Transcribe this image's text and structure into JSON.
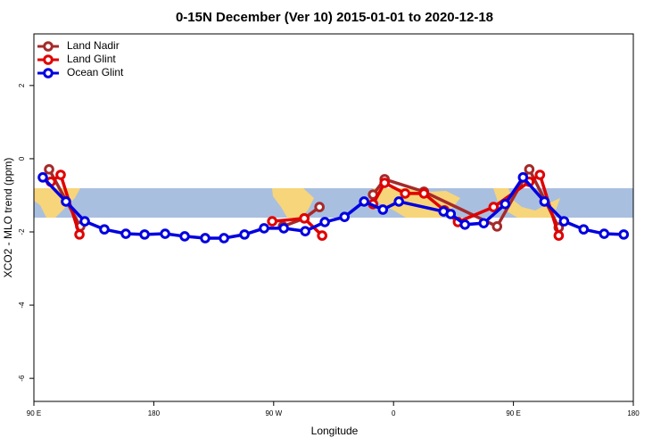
{
  "chart_data": {
    "type": "line",
    "title": "0-15N December (Ver 10)   2015-01-01 to 2020-12-18",
    "x_label": "Longitude",
    "y_label": "XCO2 - MLO trend (ppm)",
    "xlim": [
      90,
      540
    ],
    "xticks": [
      {
        "value": 90,
        "label": "90 E"
      },
      180,
      {
        "value": 270,
        "label": "90 W"
      },
      {
        "value": 360,
        "label": "0"
      },
      {
        "value": 450,
        "label": "90 E"
      },
      {
        "value": 540,
        "label": "180"
      }
    ],
    "ylim": [
      -6.63,
      3.41
    ],
    "yticks": [
      2,
      0,
      -2,
      -4,
      -6
    ],
    "legend": "upper left",
    "series": [
      {
        "name": "Land Nadir",
        "color": "#a52a2a",
        "x": [
          101.4,
          124.8,
          null,
          276.9,
          293,
          304.4,
          null,
          344.6,
          353.3,
          382.8,
          437.7,
          461.9,
          484
        ],
        "values": [
          -0.29,
          -1.85,
          null,
          -1.85,
          -1.63,
          -1.32,
          null,
          -0.98,
          -0.56,
          -0.9,
          -1.85,
          -0.29,
          -1.88
        ]
      },
      {
        "name": "Land Glint",
        "color": "#e00000",
        "x": [
          102.7,
          110.1,
          124.2,
          null,
          268.9,
          293,
          306.4,
          null,
          344.6,
          353.3,
          368.7,
          382.8,
          398.2,
          408.3,
          435.1,
          461.9,
          469.9,
          484
        ],
        "values": [
          -0.63,
          -0.44,
          -2.07,
          null,
          -1.71,
          -1.63,
          -2.1,
          null,
          -1.24,
          -0.66,
          -0.95,
          -0.95,
          -1.41,
          -1.73,
          -1.32,
          -0.63,
          -0.44,
          -2.1
        ]
      },
      {
        "name": "Ocean Glint",
        "color": "#0000e0",
        "x": [
          96.7,
          114.1,
          128.2,
          142.9,
          159,
          173.1,
          188.5,
          203.2,
          218.6,
          232.7,
          248.1,
          262.8,
          277.6,
          293.7,
          308.4,
          323.2,
          337.9,
          352,
          364,
          397.5,
          402.9,
          413.6,
          427.7,
          443.8,
          457.2,
          473.3,
          488,
          502.7,
          518.1,
          532.8
        ],
        "values": [
          -0.51,
          -1.17,
          -1.71,
          -1.93,
          -2.05,
          -2.07,
          -2.05,
          -2.12,
          -2.17,
          -2.17,
          -2.07,
          -1.9,
          -1.9,
          -1.98,
          -1.73,
          -1.59,
          -1.17,
          -1.39,
          -1.17,
          -1.44,
          -1.51,
          -1.8,
          -1.76,
          -1.24,
          -0.51,
          -1.17,
          -1.71,
          -1.93,
          -2.05,
          -2.07
        ]
      }
    ]
  }
}
